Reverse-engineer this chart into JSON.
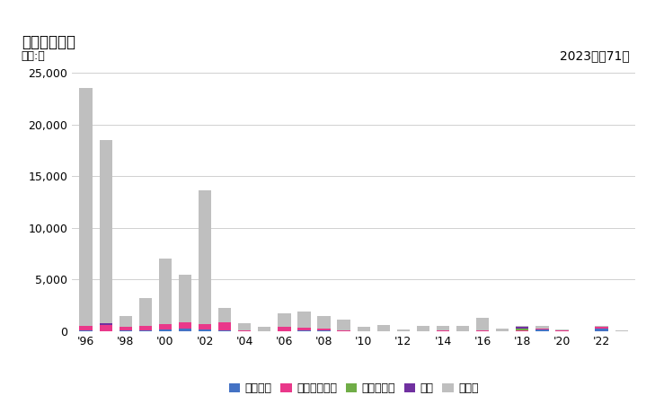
{
  "title": "輸出量の推移",
  "unit_label": "単位:着",
  "annotation": "2023年：71着",
  "years": [
    1996,
    1997,
    1998,
    1999,
    2000,
    2001,
    2002,
    2003,
    2004,
    2005,
    2006,
    2007,
    2008,
    2009,
    2010,
    2011,
    2012,
    2013,
    2014,
    2015,
    2016,
    2017,
    2018,
    2019,
    2020,
    2021,
    2022,
    2023
  ],
  "spain": [
    100,
    0,
    100,
    100,
    200,
    300,
    200,
    50,
    0,
    0,
    0,
    50,
    50,
    0,
    0,
    0,
    0,
    0,
    0,
    0,
    0,
    0,
    0,
    200,
    0,
    0,
    300,
    0
  ],
  "austria": [
    400,
    600,
    300,
    400,
    500,
    600,
    500,
    800,
    100,
    0,
    400,
    300,
    200,
    100,
    0,
    0,
    0,
    0,
    100,
    0,
    100,
    0,
    100,
    100,
    100,
    0,
    100,
    0
  ],
  "denmark": [
    0,
    0,
    0,
    0,
    0,
    0,
    0,
    0,
    0,
    0,
    0,
    0,
    0,
    0,
    0,
    0,
    0,
    0,
    0,
    0,
    0,
    0,
    200,
    0,
    0,
    0,
    0,
    0
  ],
  "hongkong": [
    0,
    200,
    0,
    0,
    0,
    0,
    0,
    0,
    0,
    0,
    0,
    0,
    0,
    0,
    0,
    0,
    0,
    0,
    0,
    0,
    0,
    0,
    100,
    0,
    0,
    0,
    0,
    0
  ],
  "other": [
    23000,
    17700,
    1100,
    2700,
    6300,
    4600,
    12900,
    1400,
    700,
    400,
    1300,
    1600,
    1200,
    1000,
    400,
    600,
    200,
    500,
    400,
    500,
    1200,
    300,
    100,
    200,
    100,
    0,
    100,
    71
  ],
  "colors": {
    "spain": "#4472c4",
    "austria": "#e9388a",
    "denmark": "#70ad47",
    "hongkong": "#7030a0",
    "other": "#bfbfbf"
  },
  "legend_labels": {
    "spain": "スペイン",
    "austria": "オーストリア",
    "denmark": "デンマーク",
    "hongkong": "香港",
    "other": "その他"
  },
  "ylim": [
    0,
    25000
  ],
  "yticks": [
    0,
    5000,
    10000,
    15000,
    20000,
    25000
  ],
  "background_color": "#ffffff",
  "grid_color": "#d0d0d0"
}
